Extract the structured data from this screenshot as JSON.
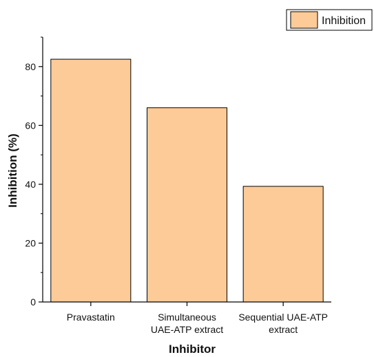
{
  "chart_data": {
    "type": "bar",
    "categories": [
      [
        "Pravastatin"
      ],
      [
        "Simultaneous",
        "UAE-ATP extract"
      ],
      [
        "Sequential UAE-ATP",
        "extract"
      ]
    ],
    "series": [
      {
        "name": "Inhibition",
        "values": [
          82.5,
          66.0,
          39.3
        ],
        "color": "#FDCB97"
      }
    ],
    "xlabel": "Inhibitor",
    "ylabel": "Inhibition (%)",
    "ylim": [
      0,
      90
    ],
    "yticks": [
      0,
      20,
      40,
      60,
      80
    ],
    "legend_position": "top-right",
    "grid": false,
    "bar_edge_color": "#000000"
  }
}
